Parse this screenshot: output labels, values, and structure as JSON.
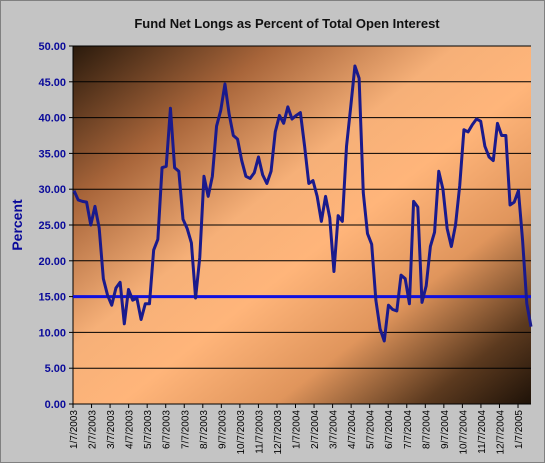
{
  "chart_data": {
    "type": "line",
    "title": "Fund Net Longs as Percent of Total Open Interest",
    "xlabel": "",
    "ylabel": "Percent",
    "ylim": [
      0,
      50
    ],
    "ytick_values": [
      0,
      5,
      10,
      15,
      20,
      25,
      30,
      35,
      40,
      45,
      50
    ],
    "ytick_labels": [
      "0.00",
      "5.00",
      "10.00",
      "15.00",
      "20.00",
      "25.00",
      "30.00",
      "35.00",
      "40.00",
      "45.00",
      "50.00"
    ],
    "xtick_labels": [
      "1/7/2003",
      "2/7/2003",
      "3/7/2003",
      "4/7/2003",
      "5/7/2003",
      "6/7/2003",
      "7/7/2003",
      "8/7/2003",
      "9/7/2003",
      "10/7/2003",
      "11/7/2003",
      "12/7/2003",
      "1/7/2004",
      "2/7/2004",
      "3/7/2004",
      "4/7/2004",
      "5/7/2004",
      "6/7/2004",
      "7/7/2004",
      "8/7/2004",
      "9/7/2004",
      "10/7/2004",
      "11/7/2004",
      "12/7/2004",
      "1/7/2005"
    ],
    "grid": true,
    "reference_line": {
      "value": 15,
      "color": "#1010e0"
    },
    "series": [
      {
        "color": "#1a1a8c",
        "values": [
          29.8,
          28.5,
          28.3,
          28.2,
          25.0,
          27.6,
          24.6,
          17.5,
          15.2,
          13.8,
          16.2,
          17.0,
          11.2,
          16.0,
          14.5,
          14.8,
          11.8,
          14.0,
          14.0,
          21.5,
          23.0,
          33.0,
          33.2,
          41.3,
          33.0,
          32.5,
          25.8,
          24.5,
          22.5,
          14.8,
          20.5,
          31.8,
          29.0,
          31.8,
          38.8,
          41.0,
          44.7,
          40.5,
          37.5,
          37.0,
          34.0,
          31.8,
          31.5,
          32.3,
          34.5,
          32.0,
          30.8,
          32.5,
          38.0,
          40.3,
          39.2,
          41.5,
          39.8,
          40.3,
          40.7,
          36.0,
          30.8,
          31.2,
          29.0,
          25.5,
          29.0,
          26.0,
          18.5,
          26.3,
          25.5,
          36.0,
          41.5,
          47.2,
          45.5,
          29.5,
          23.8,
          22.3,
          14.5,
          10.5,
          8.8,
          13.8,
          13.2,
          13.0,
          18.0,
          17.5,
          14.0,
          28.3,
          27.5,
          14.2,
          16.5,
          22.0,
          24.0,
          32.5,
          30.0,
          24.5,
          22.0,
          25.0,
          30.5,
          38.3,
          38.0,
          39.0,
          39.8,
          39.5,
          36.0,
          34.5,
          34.0,
          39.2,
          37.5,
          37.5,
          27.8,
          28.2,
          29.8,
          22.8,
          14.0,
          10.8
        ]
      }
    ]
  }
}
